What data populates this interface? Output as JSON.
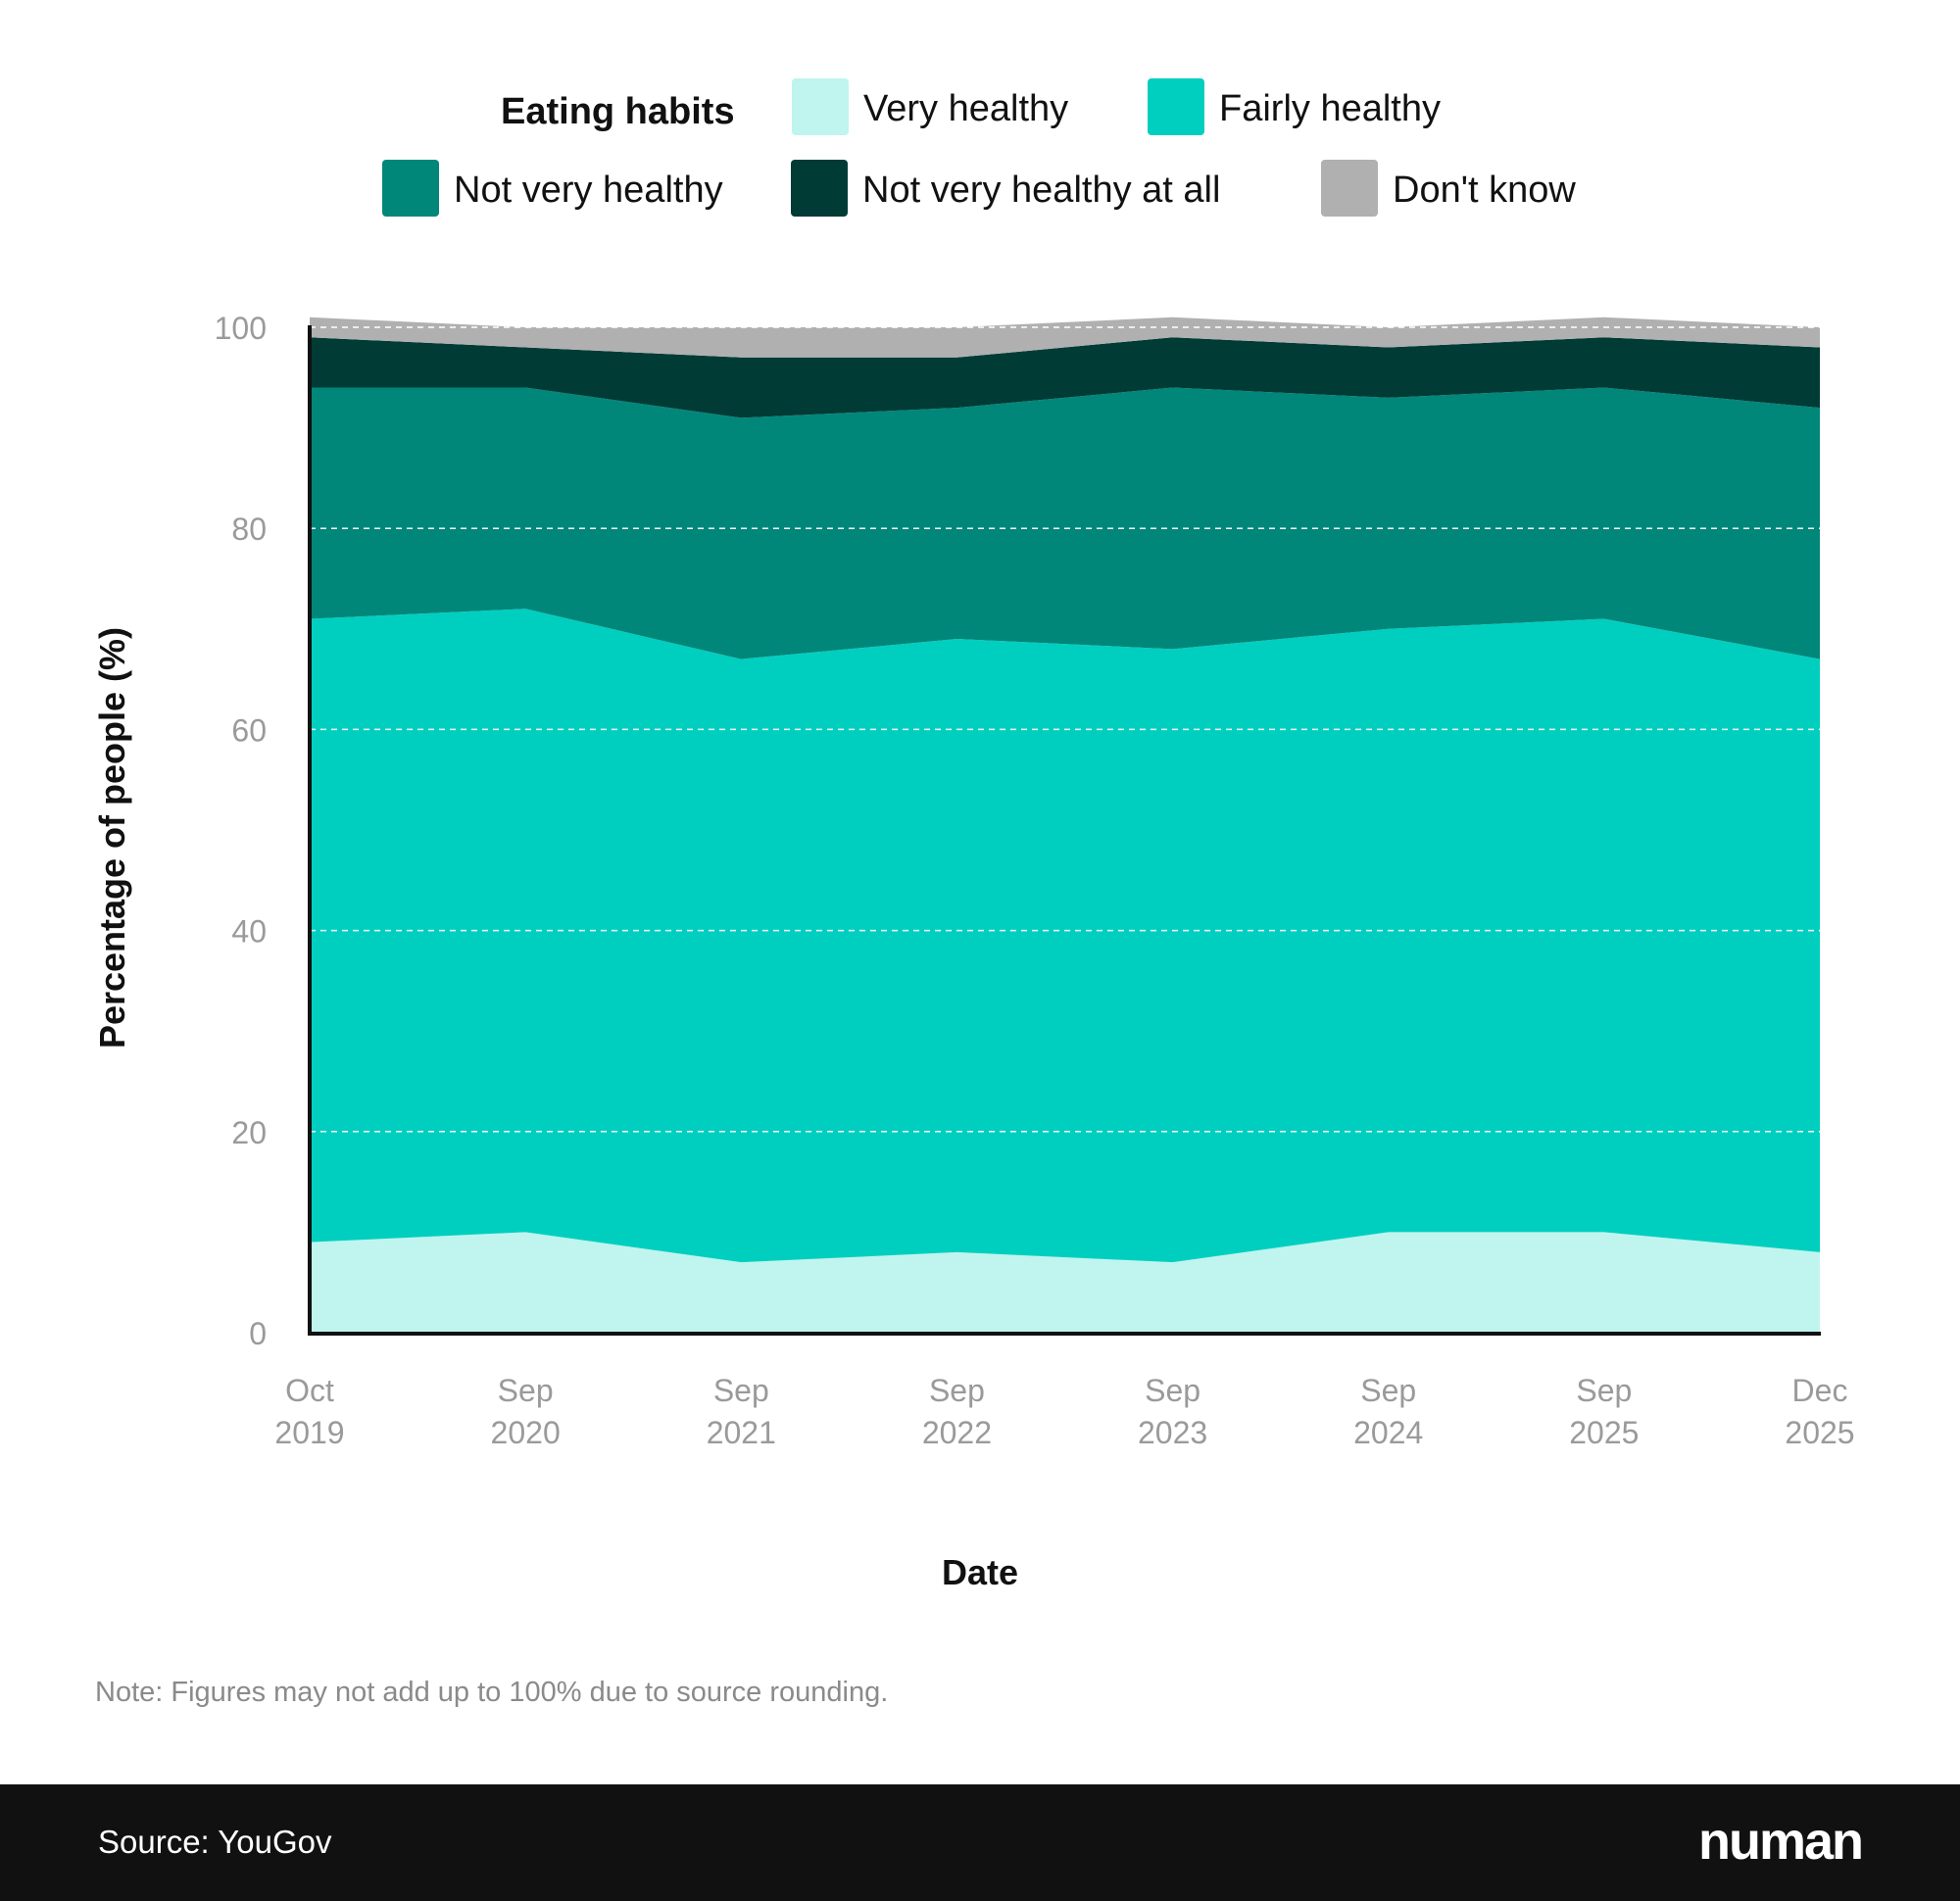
{
  "chart_data": {
    "type": "area",
    "stacked": true,
    "legend_title": "Eating habits",
    "legend_placement": "top",
    "categories": [
      "Oct 2019",
      "Sep 2020",
      "Sep 2021",
      "Sep 2022",
      "Sep 2023",
      "Sep 2024",
      "Sep 2025",
      "Dec 2025"
    ],
    "category_lines": [
      [
        "Oct",
        "2019"
      ],
      [
        "Sep",
        "2020"
      ],
      [
        "Sep",
        "2021"
      ],
      [
        "Sep",
        "2022"
      ],
      [
        "Sep",
        "2023"
      ],
      [
        "Sep",
        "2024"
      ],
      [
        "Sep",
        "2025"
      ],
      [
        "Dec",
        "2025"
      ]
    ],
    "series": [
      {
        "name": "Very healthy",
        "color": "#bff5ee",
        "values": [
          9,
          10,
          7,
          8,
          7,
          10,
          10,
          8
        ]
      },
      {
        "name": "Fairly healthy",
        "color": "#00cfbf",
        "values": [
          62,
          62,
          60,
          61,
          61,
          60,
          61,
          59
        ]
      },
      {
        "name": "Not very healthy",
        "color": "#00877a",
        "values": [
          23,
          22,
          24,
          23,
          26,
          23,
          23,
          25
        ]
      },
      {
        "name": "Not very healthy at all",
        "color": "#003b36",
        "values": [
          5,
          4,
          6,
          5,
          5,
          5,
          5,
          6
        ]
      },
      {
        "name": "Don't know",
        "color": "#b0b0b0",
        "values": [
          2,
          2,
          3,
          3,
          2,
          2,
          2,
          2
        ]
      }
    ],
    "xlabel": "Date",
    "ylabel": "Percentage of people (%)",
    "ylim": [
      0,
      100
    ],
    "yticks": [
      0,
      20,
      40,
      60,
      80,
      100
    ],
    "grid": "horizontal dashed"
  },
  "note": "Note: Figures may not add up to 100% due to source rounding.",
  "footer": {
    "source": "Source: YouGov",
    "logo": "numan"
  }
}
